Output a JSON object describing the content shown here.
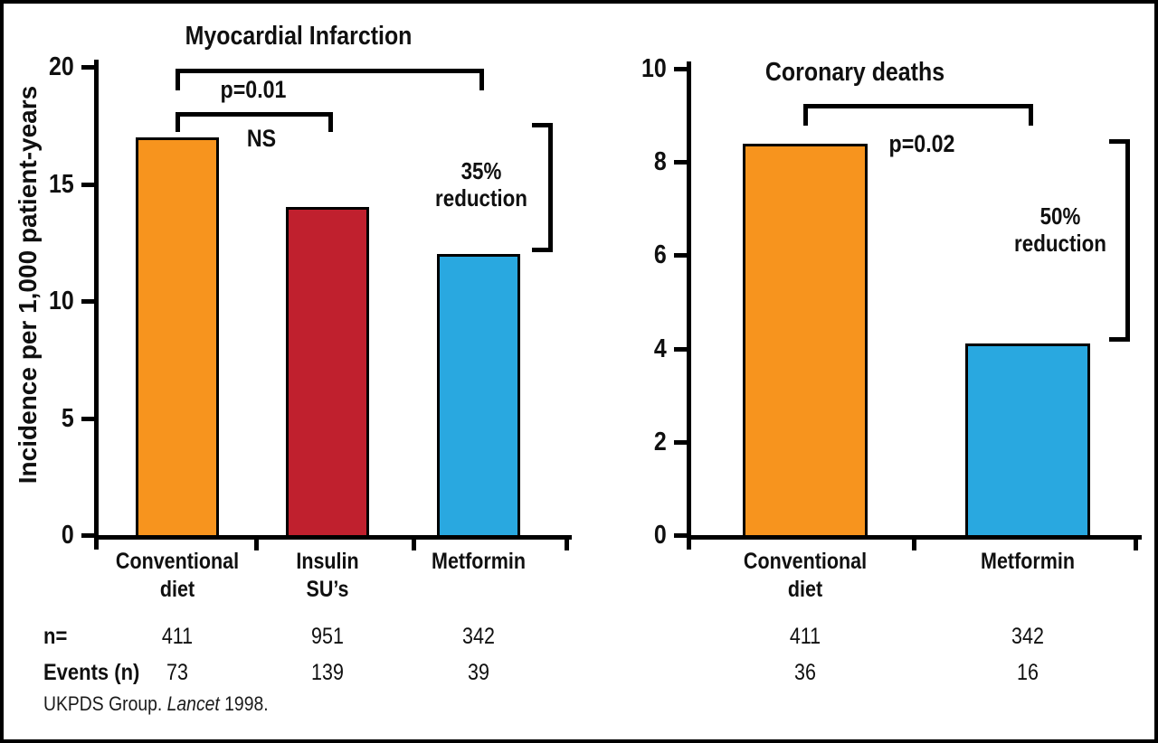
{
  "figure": {
    "ylabel": "Incidence per 1,000 patient-years",
    "row_labels": {
      "n": "n=",
      "events": "Events (n)"
    },
    "source": {
      "prefix": "UKPDS Group. ",
      "journal": "Lancet",
      "suffix": " 1998."
    }
  },
  "colors": {
    "conventional": "#F7941E",
    "insulin": "#C0202E",
    "metformin": "#29A8E0",
    "line": "#000000"
  },
  "chart_data": [
    {
      "type": "bar",
      "title": "Myocardial Infarction",
      "ylabel": "Incidence per 1,000 patient-years",
      "ylim": [
        0,
        20
      ],
      "yticks": [
        0,
        5,
        10,
        15,
        20
      ],
      "categories": [
        [
          "Conventional",
          "diet"
        ],
        [
          "Insulin",
          "SU’s"
        ],
        [
          "Metformin"
        ]
      ],
      "values": [
        17,
        14,
        12
      ],
      "bar_color_keys": [
        "conventional",
        "insulin",
        "metformin"
      ],
      "n": [
        "411",
        "951",
        "342"
      ],
      "events": [
        "73",
        "139",
        "39"
      ],
      "comparisons": [
        {
          "label": "p=0.01",
          "from": 0,
          "to": 2
        },
        {
          "label": "NS",
          "from": 0,
          "to": 1
        }
      ],
      "reduction": {
        "lines": [
          "35%",
          "reduction"
        ]
      },
      "legend": "none",
      "grid": false
    },
    {
      "type": "bar",
      "title": "Coronary deaths",
      "ylim": [
        0,
        10
      ],
      "yticks": [
        0,
        2,
        4,
        6,
        8,
        10
      ],
      "categories": [
        [
          "Conventional",
          "diet"
        ],
        [
          "Metformin"
        ]
      ],
      "values": [
        8.4,
        4.1
      ],
      "bar_color_keys": [
        "conventional",
        "metformin"
      ],
      "n": [
        "411",
        "342"
      ],
      "events": [
        "36",
        "16"
      ],
      "comparisons": [
        {
          "label": "p=0.02",
          "from": 0,
          "to": 1
        }
      ],
      "reduction": {
        "lines": [
          "50%",
          "reduction"
        ]
      },
      "legend": "none",
      "grid": false
    }
  ]
}
